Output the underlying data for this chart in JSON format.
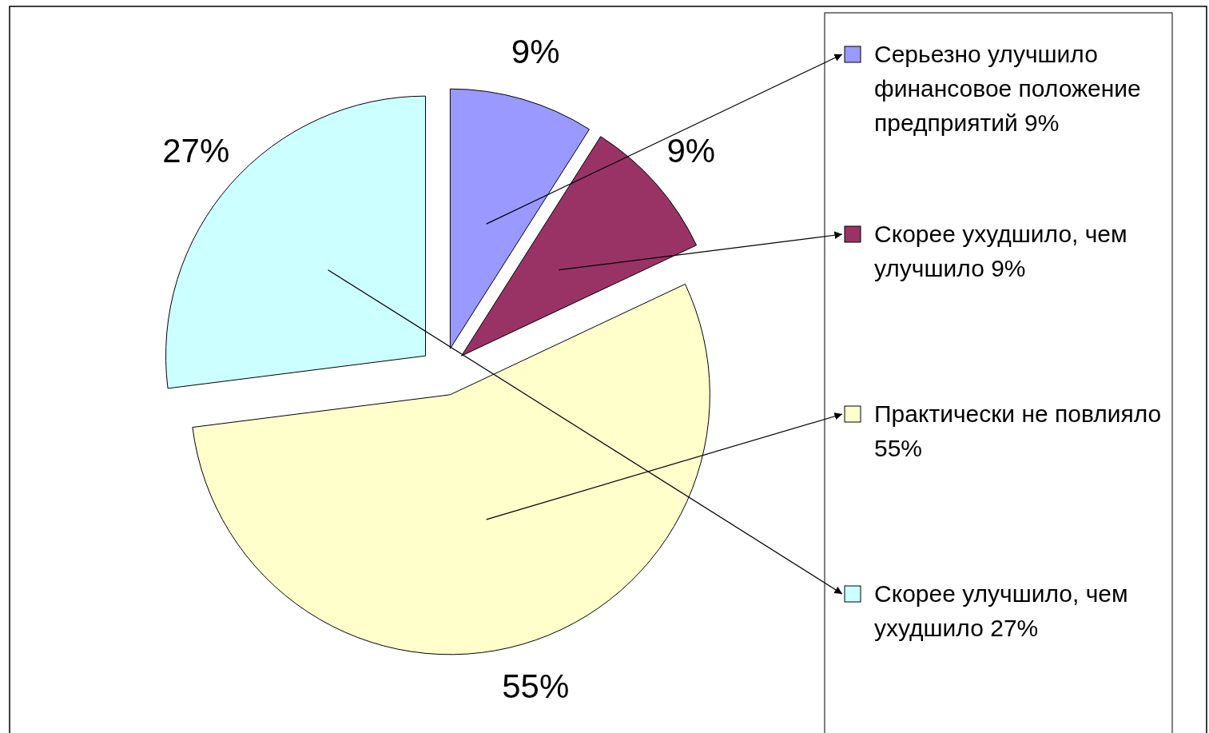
{
  "chart_data": {
    "type": "pie",
    "categories": [
      "Серьезно улучшило финансовое положение предприятий 9%",
      "Скорее ухудшило, чем  улучшило 9%",
      "Практически не повлияло 55%",
      "Скорее улучшило, чем ухудшило 27%"
    ],
    "values": [
      9,
      9,
      55,
      27
    ],
    "colors": [
      "#9999ff",
      "#993366",
      "#ffffcc",
      "#ccffff"
    ],
    "value_labels": [
      "9%",
      "9%",
      "55%",
      "27%"
    ],
    "legend": "right"
  }
}
